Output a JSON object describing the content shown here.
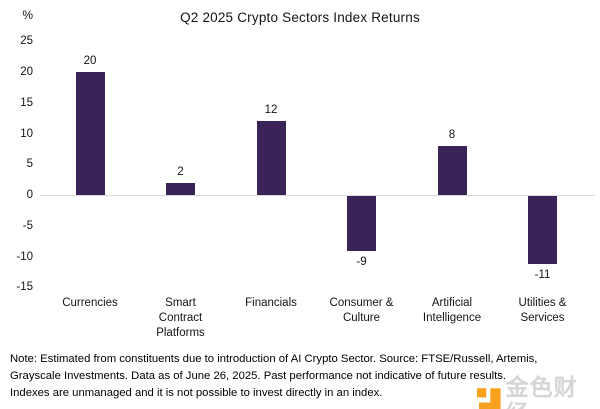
{
  "chart_data": {
    "type": "bar",
    "title": "Q2 2025 Crypto Sectors Index Returns",
    "y_axis_unit_label": "%",
    "categories": [
      "Currencies",
      "Smart Contract Platforms",
      "Financials",
      "Consumer & Culture",
      "Artificial Intelligence",
      "Utilities & Services"
    ],
    "category_label_lines": [
      [
        "Currencies"
      ],
      [
        "Smart",
        "Contract",
        "Platforms"
      ],
      [
        "Financials"
      ],
      [
        "Consumer &",
        "Culture"
      ],
      [
        "Artificial",
        "Intelligence"
      ],
      [
        "Utilities &",
        "Services"
      ]
    ],
    "values": [
      20,
      2,
      12,
      -9,
      8,
      -11
    ],
    "value_labels": [
      "20",
      "2",
      "12",
      "-9",
      "8",
      "-11"
    ],
    "y_ticks": [
      25,
      20,
      15,
      10,
      5,
      0,
      -5,
      -10,
      -15
    ],
    "ylim": [
      -15,
      25
    ],
    "xlabel": "",
    "ylabel": "%",
    "legend_position": "none",
    "grid": "zero-line-only",
    "bar_color": "#3a2357",
    "gridline_color": "#d9d9d9"
  },
  "note": {
    "lines": [
      "Note: Estimated from constituents due to introduction of AI Crypto Sector. Source: FTSE/Russell, Artemis,",
      "Grayscale Investments. Data as of June 26, 2025. Past performance not indicative of future results.",
      "Indexes are unmanaged and it is not possible to invest directly in an index."
    ]
  },
  "watermark": {
    "text": "金色财经",
    "logo_color": "#f6a01e",
    "text_color": "#d5d5d5"
  }
}
